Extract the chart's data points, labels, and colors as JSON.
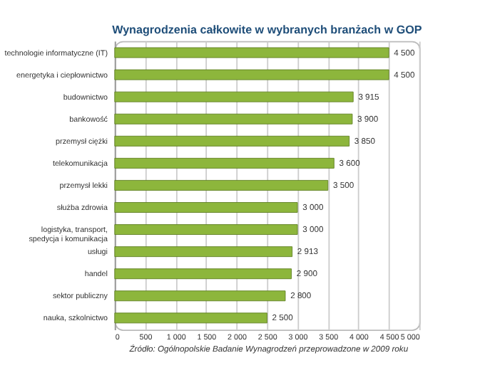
{
  "chart_data": {
    "type": "bar",
    "orientation": "horizontal",
    "title": "Wynagrodzenia całkowite w wybranych branżach w GOP",
    "categories": [
      "technologie informatyczne (IT)",
      "energetyka i ciepłownictwo",
      "budownictwo",
      "bankowość",
      "przemysł ciężki",
      "telekomunikacja",
      "przemysł lekki",
      "służba zdrowia",
      "logistyka, transport,\nspedycja i komunikacja",
      "usługi",
      "handel",
      "sektor publiczny",
      "nauka, szkolnictwo"
    ],
    "values": [
      4500,
      4500,
      3915,
      3900,
      3850,
      3600,
      3500,
      3000,
      3000,
      2913,
      2900,
      2800,
      2500
    ],
    "value_labels": [
      "4 500",
      "4 500",
      "3 915",
      "3 900",
      "3 850",
      "3 600",
      "3 500",
      "3 000",
      "3 000",
      "2 913",
      "2 900",
      "2 800",
      "2 500"
    ],
    "color": "#8db63c",
    "xlim": [
      0,
      5000
    ],
    "xticks": [
      0,
      500,
      {
        "value": 1000,
        "label": "1 000"
      },
      {
        "value": 1500,
        "label": "1 500"
      },
      {
        "value": 2000,
        "label": "2 000"
      },
      {
        "value": 2500,
        "label": "2 500"
      },
      {
        "value": 3000,
        "label": "3 000"
      },
      {
        "value": 3500,
        "label": "3 500"
      },
      {
        "value": 4000,
        "label": "4 000"
      },
      {
        "value": 4500,
        "label": "4 500"
      },
      {
        "value": 5000,
        "label": "5 000"
      }
    ],
    "grid": "x",
    "annotations": [
      "Źródło: Ogólnopolskie Badanie Wynagrodzeń przeprowadzone w 2009 roku"
    ]
  }
}
